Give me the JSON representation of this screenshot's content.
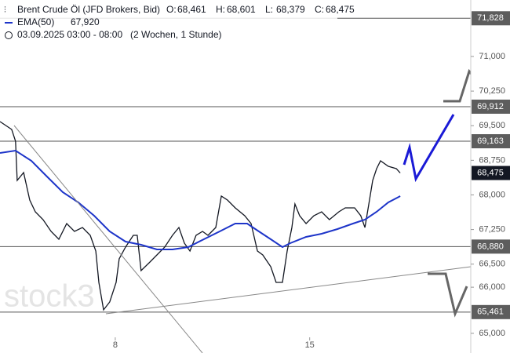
{
  "chart_data": {
    "type": "line",
    "title": "Brent Crude Öl (JFD Brokers, Bid)",
    "ohlc": [
      {
        "key": "O:",
        "text": "68,461"
      },
      {
        "key": "H:",
        "text": "68,601"
      },
      {
        "key": "L:",
        "text": "68,379"
      },
      {
        "key": "C:",
        "text": "68,475"
      }
    ],
    "ema_label": "EMA(50)",
    "ema_value": "67,920",
    "subtitle": "03.09.2025 03:00 - 08:00",
    "interval": "(2 Wochen, 1 Stunde)",
    "watermark": "stock3",
    "xlim": [
      3.85,
      20.8
    ],
    "xticks": [
      8,
      15
    ],
    "ylim": [
      64574,
      72224
    ],
    "yticks": [
      {
        "value": 65000,
        "label": "65,000"
      },
      {
        "value": 66000,
        "label": "66,000"
      },
      {
        "value": 66500,
        "label": "66,500"
      },
      {
        "value": 67250,
        "label": "67,250"
      },
      {
        "value": 68000,
        "label": "68,000"
      },
      {
        "value": 68750,
        "label": "68,750"
      },
      {
        "value": 69500,
        "label": "69,500"
      },
      {
        "value": 70250,
        "label": "70,250"
      },
      {
        "value": 71000,
        "label": "71,000"
      }
    ],
    "levels": [
      {
        "value": 71828,
        "label": "71,828"
      },
      {
        "value": 69912,
        "label": "69,912"
      },
      {
        "value": 69163,
        "label": "69,163"
      },
      {
        "value": 66880,
        "label": "66,880"
      },
      {
        "value": 65461,
        "label": "65,461"
      }
    ],
    "last_price": {
      "value": 68475,
      "label": "68,475"
    },
    "series": [
      {
        "name": "Brent Crude Öl",
        "color": "#131722",
        "x": [
          3.85,
          4.27,
          4.41,
          4.47,
          4.7,
          4.92,
          5.12,
          5.4,
          5.69,
          5.97,
          6.25,
          6.53,
          6.82,
          7.1,
          7.3,
          7.41,
          7.58,
          7.8,
          8.03,
          8.14,
          8.37,
          8.65,
          8.79,
          8.93,
          9.22,
          9.5,
          9.78,
          10.06,
          10.29,
          10.49,
          10.69,
          10.91,
          11.14,
          11.34,
          11.62,
          11.82,
          12.04,
          12.32,
          12.66,
          12.89,
          13.12,
          13.31,
          13.6,
          13.79,
          14.02,
          14.19,
          14.36,
          14.47,
          14.64,
          14.87,
          15.15,
          15.43,
          15.71,
          16.05,
          16.28,
          16.62,
          16.84,
          16.99,
          17.13,
          17.27,
          17.41,
          17.55,
          17.83,
          18.12,
          18.26
        ],
        "values": [
          69589,
          69419,
          69164,
          68314,
          68484,
          67889,
          67634,
          67464,
          67209,
          67039,
          67379,
          67209,
          67294,
          67124,
          66784,
          66104,
          65509,
          65679,
          66104,
          66614,
          66869,
          67124,
          67124,
          66359,
          66529,
          66699,
          66869,
          67124,
          67294,
          66954,
          66784,
          67124,
          67209,
          67124,
          67294,
          67974,
          67889,
          67719,
          67549,
          67379,
          66784,
          66699,
          66444,
          66104,
          66104,
          66784,
          67294,
          67804,
          67549,
          67379,
          67549,
          67634,
          67464,
          67634,
          67719,
          67719,
          67549,
          67294,
          67804,
          68314,
          68569,
          68739,
          68620,
          68569,
          68475
        ]
      },
      {
        "name": "EMA(50)",
        "color": "#1e35c9",
        "x": [
          3.85,
          4.41,
          4.98,
          5.54,
          6.11,
          6.67,
          7.24,
          7.8,
          8.37,
          8.93,
          9.5,
          10.06,
          10.63,
          11.19,
          11.76,
          12.32,
          12.75,
          13.17,
          13.6,
          14.02,
          14.3,
          14.87,
          15.43,
          16.0,
          16.56,
          16.99,
          17.41,
          17.83,
          18.26
        ],
        "values": [
          68909,
          68960,
          68739,
          68399,
          68059,
          67838,
          67549,
          67209,
          66988,
          66920,
          66818,
          66818,
          66869,
          67039,
          67209,
          67379,
          67379,
          67209,
          67039,
          66869,
          66954,
          67090,
          67158,
          67260,
          67379,
          67464,
          67634,
          67838,
          67974
        ]
      }
    ]
  }
}
